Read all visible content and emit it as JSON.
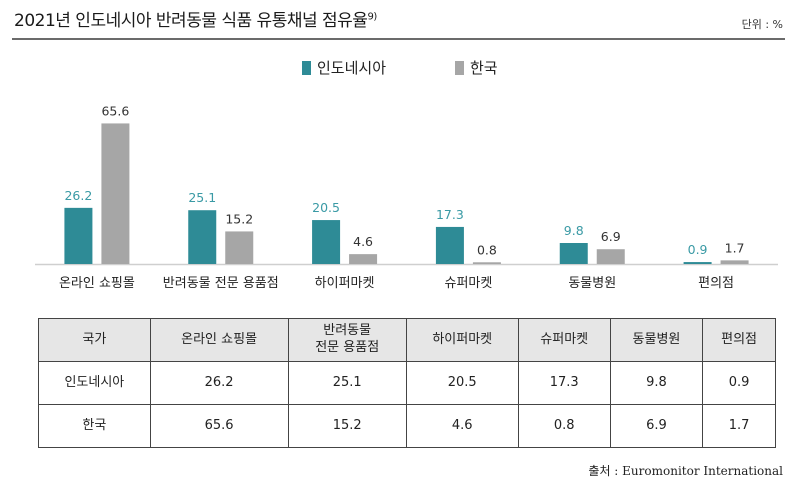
{
  "header": {
    "title": "2021년 인도네시아 반려동물 식품 유통채널 점유율",
    "footnote": "9)",
    "unit": "단위 : %"
  },
  "colors": {
    "indonesia": "#2e8b96",
    "korea": "#a6a6a6",
    "indonesia_label": "#3a9aa5"
  },
  "chart_data": {
    "type": "bar",
    "categories": [
      "온라인 쇼핑몰",
      "반려동물 전문 용품점",
      "하이퍼마켓",
      "슈퍼마켓",
      "동물병원",
      "편의점"
    ],
    "series": [
      {
        "name": "인도네시아",
        "values": [
          26.2,
          25.1,
          20.5,
          17.3,
          9.8,
          0.9
        ]
      },
      {
        "name": "한국",
        "values": [
          65.6,
          15.2,
          4.6,
          0.8,
          6.9,
          1.7
        ]
      }
    ],
    "ylim": [
      0,
      70
    ],
    "legend": "top-center",
    "grid": false
  },
  "table": {
    "header": [
      "국가",
      "온라인 쇼핑몰",
      "반려동물\n전문 용품점",
      "하이퍼마켓",
      "슈퍼마켓",
      "동물병원",
      "편의점"
    ],
    "rows": [
      [
        "인도네시아",
        "26.2",
        "25.1",
        "20.5",
        "17.3",
        "9.8",
        "0.9"
      ],
      [
        "한국",
        "65.6",
        "15.2",
        "4.6",
        "0.8",
        "6.9",
        "1.7"
      ]
    ]
  },
  "source": "출처 : Euromonitor International"
}
